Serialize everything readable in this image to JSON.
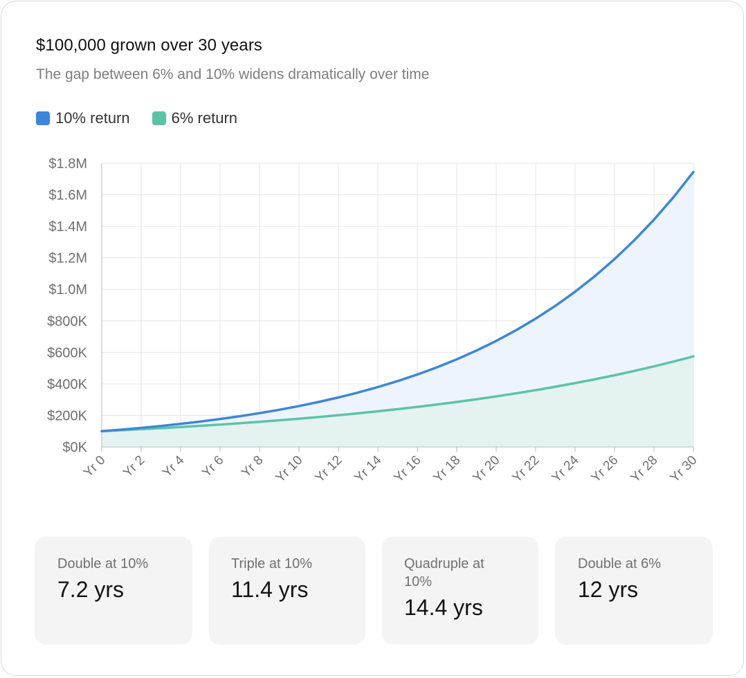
{
  "header": {
    "title": "$100,000 grown over 30 years",
    "subtitle": "The gap between 6% and 10% widens dramatically over time"
  },
  "legend": [
    {
      "label": "10% return",
      "color": "#3b86d8"
    },
    {
      "label": "6% return",
      "color": "#5cc4a6"
    }
  ],
  "stats": [
    {
      "label": "Double at 10%",
      "value": "7.2 yrs"
    },
    {
      "label": "Triple at 10%",
      "value": "11.4 yrs"
    },
    {
      "label": "Quadruple at 10%",
      "value": "14.4 yrs"
    },
    {
      "label": "Double at 6%",
      "value": "12 yrs"
    }
  ],
  "chart_data": {
    "type": "area",
    "title": "$100,000 grown over 30 years",
    "subtitle": "The gap between 6% and 10% widens dramatically over time",
    "xlabel": "",
    "ylabel": "",
    "x": [
      0,
      1,
      2,
      3,
      4,
      5,
      6,
      7,
      8,
      9,
      10,
      11,
      12,
      13,
      14,
      15,
      16,
      17,
      18,
      19,
      20,
      21,
      22,
      23,
      24,
      25,
      26,
      27,
      28,
      29,
      30
    ],
    "x_tick_labels": [
      "Yr 0",
      "Yr 2",
      "Yr 4",
      "Yr 6",
      "Yr 8",
      "Yr 10",
      "Yr 12",
      "Yr 14",
      "Yr 16",
      "Yr 18",
      "Yr 20",
      "Yr 22",
      "Yr 24",
      "Yr 26",
      "Yr 28",
      "Yr 30"
    ],
    "x_tick_values": [
      0,
      2,
      4,
      6,
      8,
      10,
      12,
      14,
      16,
      18,
      20,
      22,
      24,
      26,
      28,
      30
    ],
    "y_tick_labels": [
      "$0K",
      "$200K",
      "$400K",
      "$600K",
      "$800K",
      "$1.0M",
      "$1.2M",
      "$1.4M",
      "$1.6M",
      "$1.8M"
    ],
    "y_tick_values": [
      0,
      200000,
      400000,
      600000,
      800000,
      1000000,
      1200000,
      1400000,
      1600000,
      1800000
    ],
    "ylim": [
      0,
      1800000
    ],
    "xlim": [
      0,
      30
    ],
    "grid": true,
    "legend_position": "top-left",
    "series": [
      {
        "name": "10% return",
        "color": "#3b86d8",
        "fill": "#eef4fd",
        "values": [
          100000,
          110000,
          121000,
          133100,
          146410,
          161051,
          177156,
          194872,
          214359,
          235795,
          259374,
          285312,
          313843,
          345227,
          379750,
          417725,
          459497,
          505447,
          555992,
          611591,
          672750,
          740025,
          814028,
          895430,
          984973,
          1083471,
          1191818,
          1310999,
          1442099,
          1586309,
          1744940
        ]
      },
      {
        "name": "6% return",
        "color": "#5cc4a6",
        "fill": "#e4f3f1",
        "values": [
          100000,
          106000,
          112360,
          119102,
          126248,
          133823,
          141852,
          150363,
          159385,
          168948,
          179085,
          189830,
          201220,
          213293,
          226090,
          239656,
          254035,
          269277,
          285434,
          302560,
          320714,
          339956,
          360354,
          381975,
          404893,
          429187,
          454938,
          482235,
          511169,
          541839,
          574349
        ]
      }
    ]
  }
}
